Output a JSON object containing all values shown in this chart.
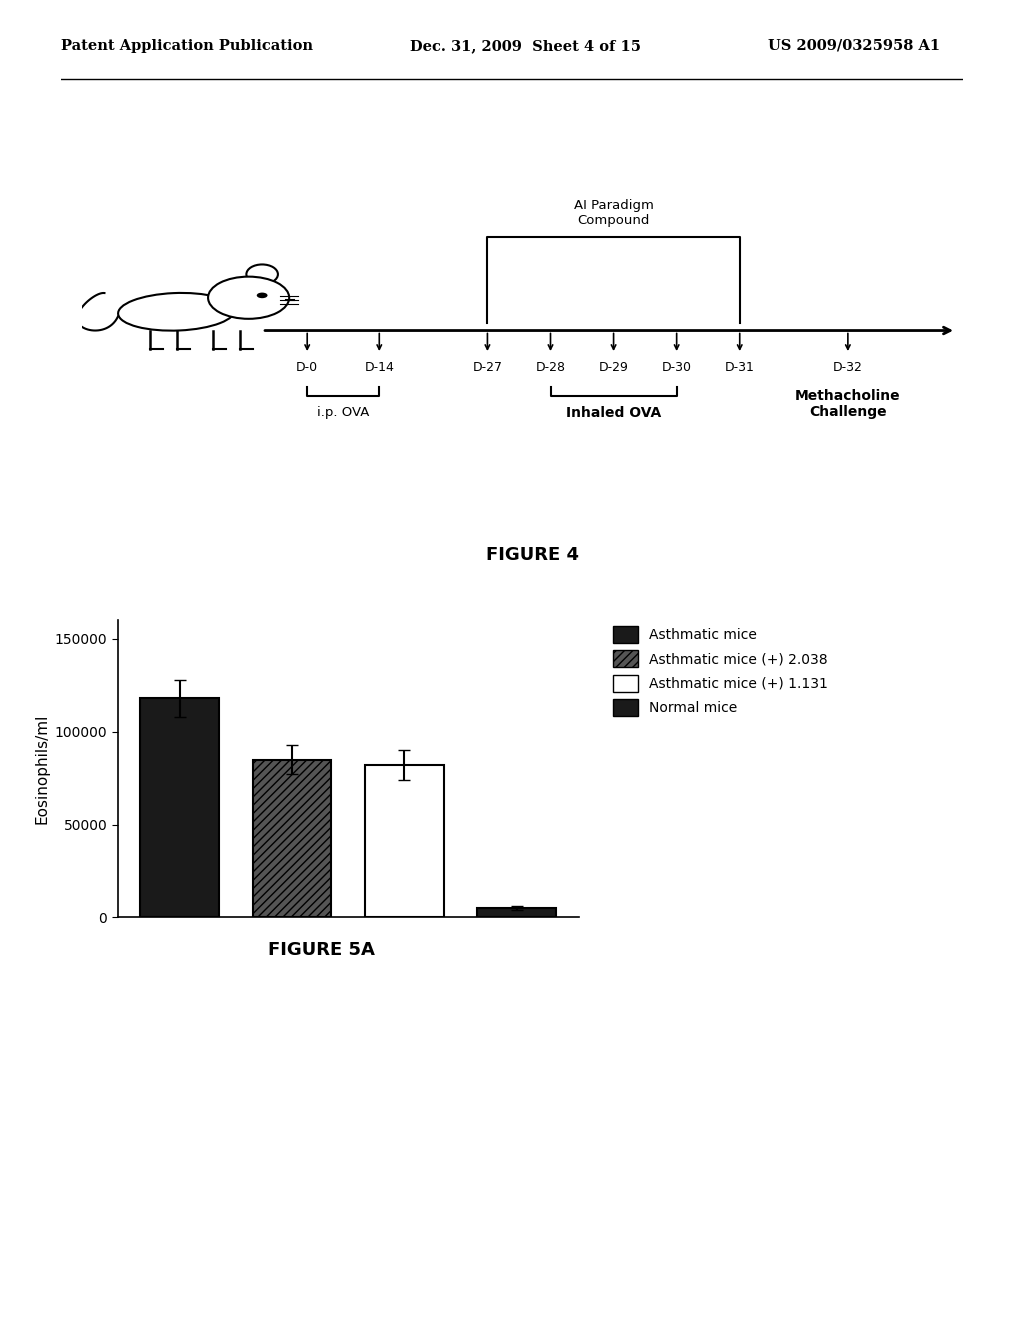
{
  "header_left": "Patent Application Publication",
  "header_mid": "Dec. 31, 2009  Sheet 4 of 15",
  "header_right": "US 2009/0325958 A1",
  "fig4_title": "FIGURE 4",
  "fig5a_title": "FIGURE 5A",
  "ai_paradigm_label": "AI Paradigm\nCompound",
  "timeline_labels": [
    "D-0",
    "D-14",
    "D-27",
    "D-28",
    "D-29",
    "D-30",
    "D-31",
    "D-32"
  ],
  "ip_ova_label": "i.p. OVA",
  "inhaled_ova_label": "Inhaled OVA",
  "methacholine_label": "Methacholine\nChallenge",
  "bar_values": [
    118000,
    85000,
    82000,
    5000
  ],
  "bar_errors": [
    10000,
    8000,
    8000,
    1000
  ],
  "bar_colors": [
    "#1a1a1a",
    "#555555",
    "#ffffff",
    "#1a1a1a"
  ],
  "bar_edge_colors": [
    "#000000",
    "#000000",
    "#000000",
    "#000000"
  ],
  "bar_hatches": [
    null,
    "////",
    null,
    null
  ],
  "legend_labels": [
    "Asthmatic mice",
    "Asthmatic mice (+) 2.038",
    "Asthmatic mice (+) 1.131",
    "Normal mice"
  ],
  "legend_colors": [
    "#1a1a1a",
    "#555555",
    "#ffffff",
    "#1a1a1a"
  ],
  "legend_hatches": [
    null,
    "////",
    null,
    null
  ],
  "ylabel": "Eosinophils/ml",
  "yticks": [
    0,
    50000,
    100000,
    150000
  ],
  "ylim": [
    0,
    160000
  ],
  "background_color": "#ffffff"
}
